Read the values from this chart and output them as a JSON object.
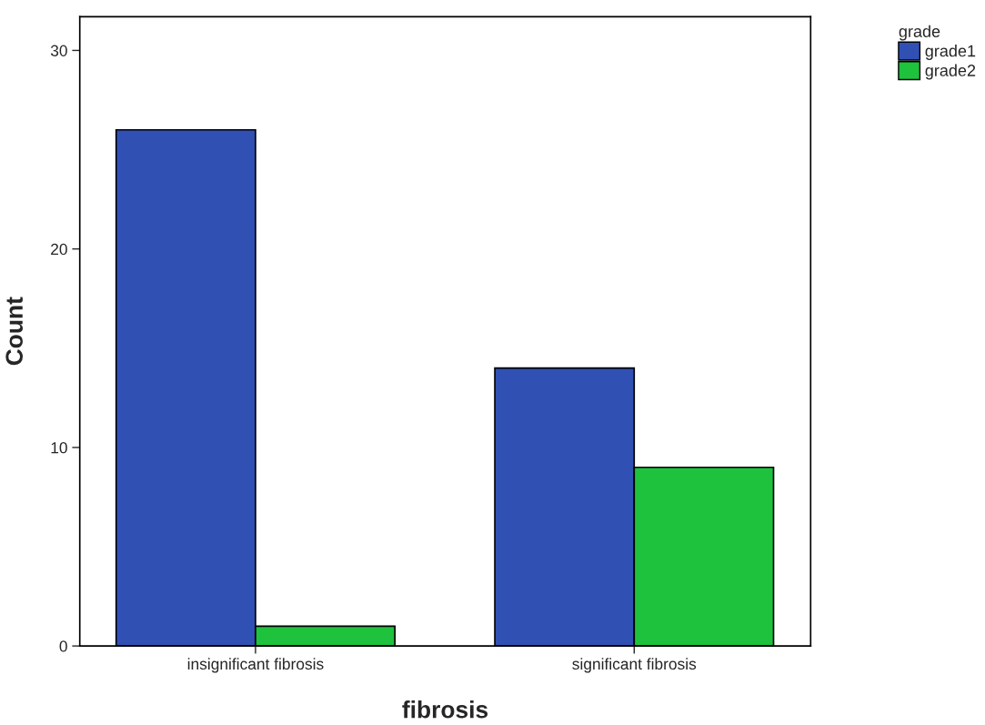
{
  "chart_data": {
    "type": "bar",
    "xlabel": "fibrosis",
    "ylabel": "Count",
    "legend_title": "grade",
    "categories": [
      "insignificant fibrosis",
      "significant fibrosis"
    ],
    "series": [
      {
        "name": "grade1",
        "color": "#3050b4",
        "values": [
          26,
          14
        ]
      },
      {
        "name": "grade2",
        "color": "#1ec23c",
        "values": [
          1,
          9
        ]
      }
    ],
    "ylim": [
      0,
      31.7
    ],
    "yticks": [
      0,
      10,
      20,
      30
    ],
    "grid": false,
    "legend": "top right"
  }
}
